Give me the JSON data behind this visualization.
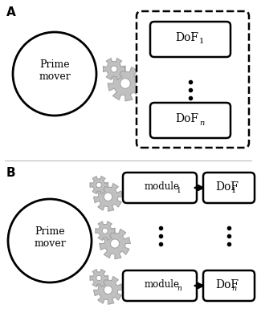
{
  "bg_color": "#ffffff",
  "gear_color": "#c0c0c0",
  "gear_edge_color": "#a0a0a0",
  "circle_color": "#ffffff",
  "circle_edge_color": "#000000",
  "box_color": "#ffffff",
  "box_edge_color": "#000000",
  "label_A": "A",
  "label_B": "B",
  "prime_mover_text": "Prime\nmover",
  "figsize": [
    3.2,
    4.0
  ],
  "dpi": 100
}
